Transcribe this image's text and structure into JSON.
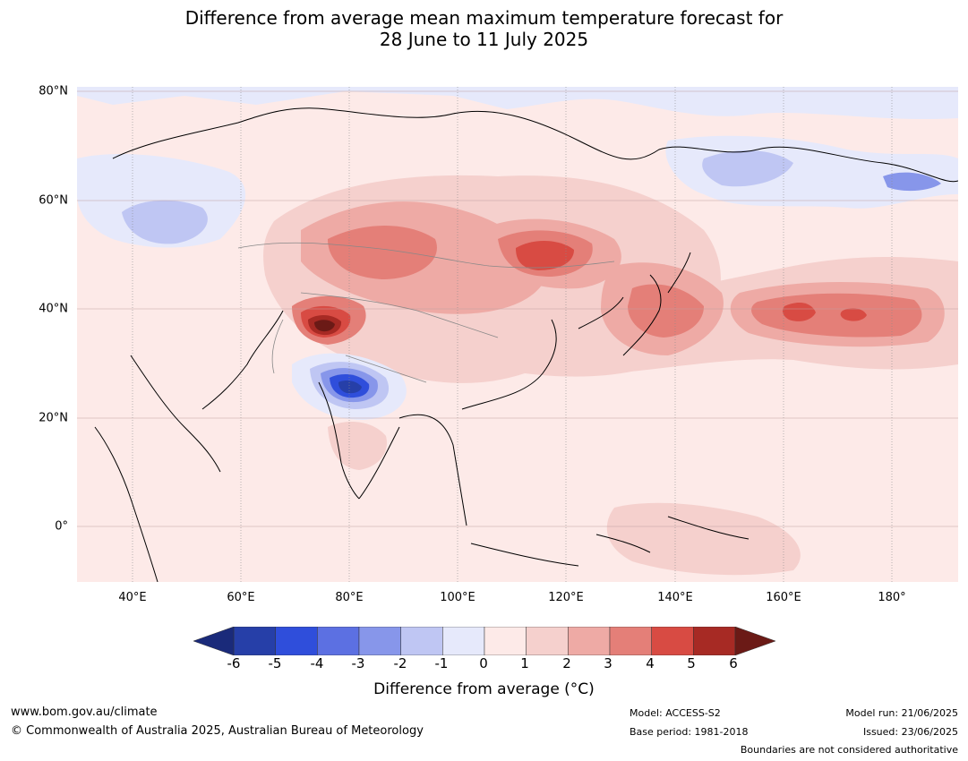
{
  "title": {
    "line1": "Difference from average mean maximum temperature forecast for",
    "line2": "28 June to 11 July 2025"
  },
  "map": {
    "region": "Asia and western Pacific",
    "lat_labels": [
      "80°N",
      "60°N",
      "40°N",
      "20°N",
      "0°"
    ],
    "lon_labels": [
      "40°E",
      "60°E",
      "80°E",
      "100°E",
      "120°E",
      "140°E",
      "160°E",
      "180°"
    ],
    "highlights": [
      {
        "name": "Strong warm anomaly",
        "location": "Northern Pakistan / Kashmir",
        "value_range": "4 to 6+"
      },
      {
        "name": "Cool anomaly",
        "location": "Northern India",
        "value_range": "-3 to -5"
      },
      {
        "name": "Warm anomaly",
        "location": "Mongolia / northern China",
        "value_range": "3 to 5"
      },
      {
        "name": "Warm anomaly",
        "location": "North Pacific east of Japan",
        "value_range": "3 to 5"
      },
      {
        "name": "Cool anomaly",
        "location": "Western Russia",
        "value_range": "-1 to -2"
      },
      {
        "name": "Cool anomaly",
        "location": "Eastern Siberia / Arctic coast",
        "value_range": "-1 to -3"
      }
    ]
  },
  "colorbar": {
    "ticks": [
      "-6",
      "-5",
      "-4",
      "-3",
      "-2",
      "-1",
      "0",
      "1",
      "2",
      "3",
      "4",
      "5",
      "6"
    ],
    "colors": [
      "#263fa8",
      "#2f4edb",
      "#5c70e2",
      "#8796ea",
      "#bfc6f3",
      "#e6e9fb",
      "#fdeae8",
      "#f5d0cd",
      "#eeaaa5",
      "#e47f78",
      "#d84b43",
      "#a72a24"
    ],
    "low_extend_color": "#1a2a7a",
    "high_extend_color": "#6b1a16",
    "label": "Difference from average (°C)"
  },
  "footer": {
    "website": "www.bom.gov.au/climate",
    "copyright": "© Commonwealth of Australia 2025, Australian Bureau of Meteorology",
    "model": "Model: ACCESS-S2",
    "base_period": "Base period: 1981-2018",
    "model_run": "Model run: 21/06/2025",
    "issued": "Issued: 23/06/2025",
    "disclaimer": "Boundaries are not considered authoritative"
  }
}
